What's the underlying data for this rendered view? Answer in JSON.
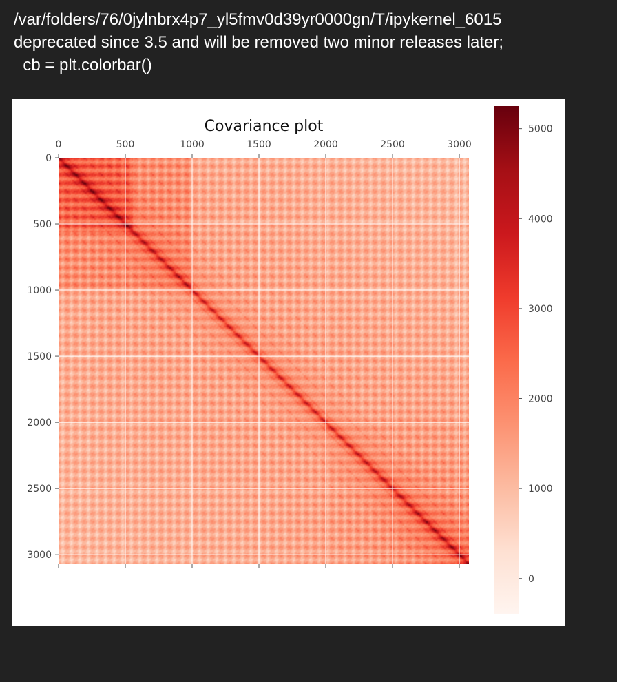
{
  "output": {
    "warning_lines": [
      "/var/folders/76/0jylnbrx4p7_yl5fmv0d39yr0000gn/T/ipykernel_6015",
      "deprecated since 3.5 and will be removed two minor releases later;",
      "  cb = plt.colorbar()"
    ]
  },
  "chart_data": {
    "type": "heatmap",
    "title": "Covariance plot",
    "xlabel": "",
    "ylabel": "",
    "matrix_size": 3072,
    "x_ticks": [
      0,
      500,
      1000,
      1500,
      2000,
      2500,
      3000
    ],
    "y_ticks": [
      0,
      500,
      1000,
      1500,
      2000,
      2500,
      3000
    ],
    "xlim": [
      0,
      3072
    ],
    "ylim": [
      3072,
      0
    ],
    "x_axis_position": "top",
    "grid": true,
    "colormap": "Reds",
    "colormap_stops": [
      "#fff5f0",
      "#fee0d2",
      "#fcbba1",
      "#fc9272",
      "#fb6a4a",
      "#ef3b2c",
      "#cb181d",
      "#a50f15",
      "#67000d"
    ],
    "colorbar": {
      "range": [
        -400,
        5250
      ],
      "ticks": [
        0,
        1000,
        2000,
        3000,
        4000,
        5000
      ]
    },
    "pattern_notes": "Strong diagonal (~5000); upper-left block highest (~3000-4000); periodic striping every ~64 rows/cols; off-diagonal bands parallel to main diagonal"
  }
}
